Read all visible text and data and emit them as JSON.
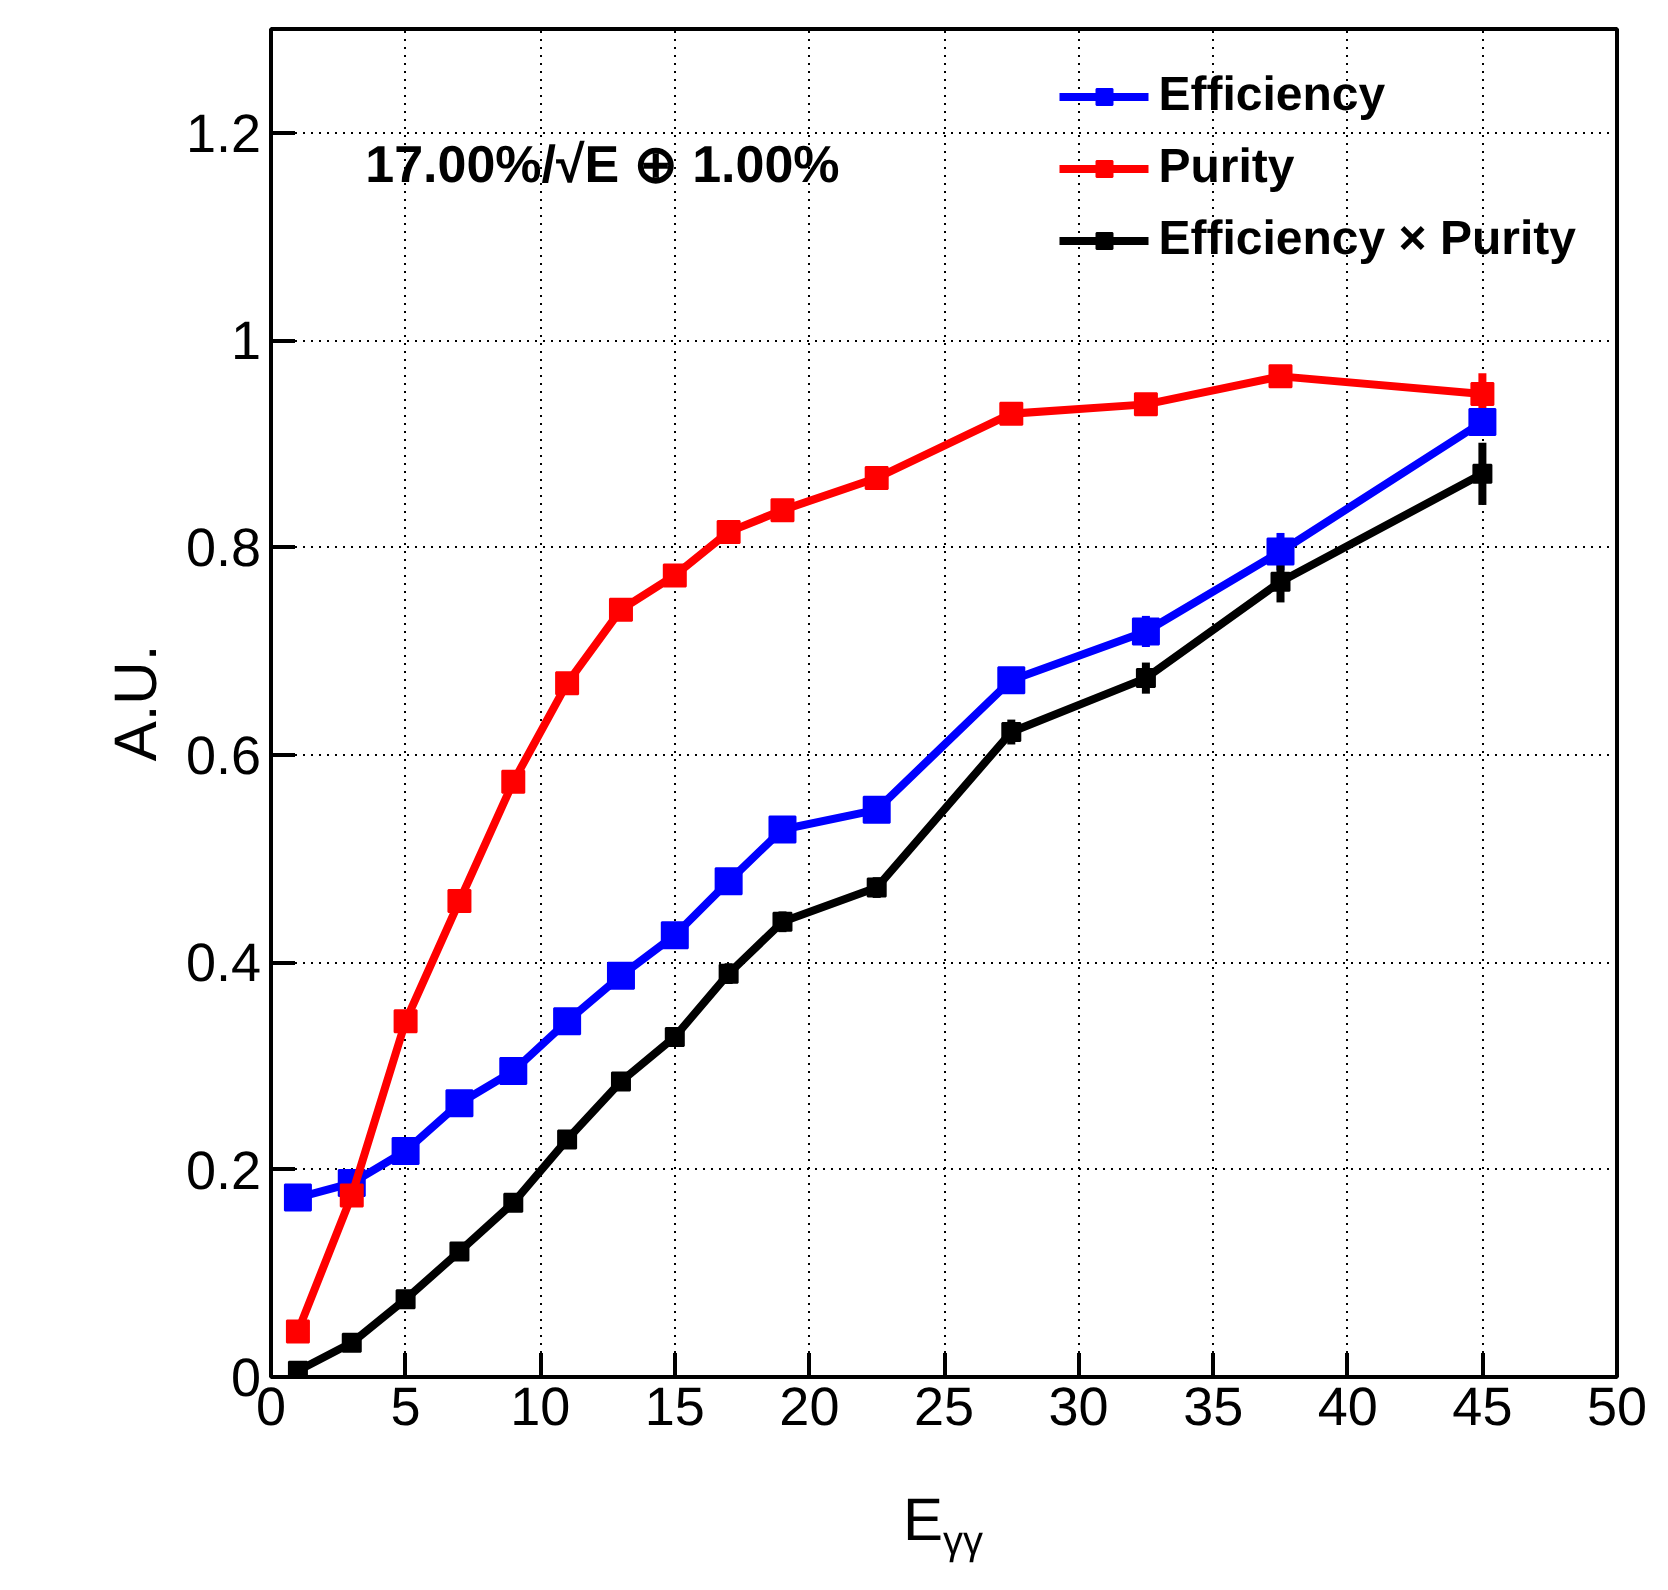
{
  "chart_data": {
    "type": "line",
    "xlabel": "E$_{γγ}$",
    "ylabel": "A.U.",
    "annotations": [
      "17.00%/√E ⊕ 1.00%"
    ],
    "x": [
      1,
      3,
      5,
      7,
      9,
      11,
      13,
      15,
      17,
      19,
      22.5,
      27.5,
      32.5,
      37.5,
      45
    ],
    "series": [
      {
        "name": "Efficiency",
        "color": "#0000ff",
        "values": [
          0.173,
          0.187,
          0.218,
          0.264,
          0.295,
          0.343,
          0.387,
          0.426,
          0.478,
          0.528,
          0.547,
          0.672,
          0.719,
          0.796,
          0.921
        ],
        "errors": [
          0.005,
          0.005,
          0.005,
          0.006,
          0.007,
          0.007,
          0.007,
          0.01,
          0.01,
          0.01,
          0.01,
          0.012,
          0.015,
          0.018,
          0.012
        ]
      },
      {
        "name": "Purity",
        "color": "#ff0000",
        "values": [
          0.044,
          0.175,
          0.343,
          0.459,
          0.574,
          0.669,
          0.74,
          0.773,
          0.815,
          0.836,
          0.867,
          0.929,
          0.938,
          0.965,
          0.948
        ],
        "errors": [
          0.005,
          0.005,
          0.006,
          0.006,
          0.006,
          0.007,
          0.008,
          0.01,
          0.01,
          0.01,
          0.008,
          0.008,
          0.01,
          0.01,
          0.02
        ]
      },
      {
        "name": "Efficiency × Purity",
        "color": "#000000",
        "values": [
          0.006,
          0.033,
          0.075,
          0.121,
          0.168,
          0.229,
          0.285,
          0.328,
          0.389,
          0.439,
          0.472,
          0.622,
          0.674,
          0.767,
          0.871
        ],
        "errors": [
          0.004,
          0.004,
          0.005,
          0.005,
          0.005,
          0.006,
          0.006,
          0.008,
          0.01,
          0.01,
          0.01,
          0.012,
          0.015,
          0.02,
          0.03
        ]
      }
    ],
    "xlim": [
      0,
      50
    ],
    "xticks": [
      0,
      5,
      10,
      15,
      20,
      25,
      30,
      35,
      40,
      45,
      50
    ],
    "ylim": [
      0,
      1.3
    ],
    "yticks": [
      0,
      0.2,
      0.4,
      0.6,
      0.8,
      1,
      1.2
    ],
    "grid": true,
    "legend": "top right",
    "marker": "square",
    "line_style": "solid"
  }
}
